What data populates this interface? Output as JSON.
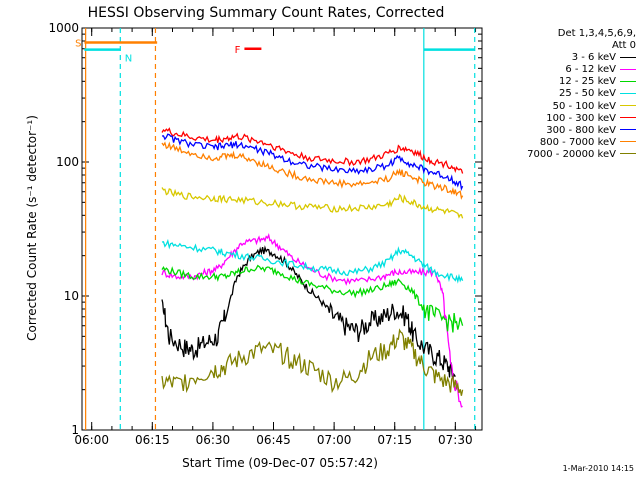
{
  "chart_data": {
    "type": "line",
    "title": "HESSI Observing Summary Count Rates, Corrected",
    "xlabel": "Start Time (09-Dec-07 05:57:42)",
    "ylabel": "Corrected Count Rate (s⁻¹ detector⁻¹)",
    "ylog": true,
    "ylim": [
      1,
      1000
    ],
    "yticks": [
      {
        "v": 1,
        "label": "1"
      },
      {
        "v": 10,
        "label": "10"
      },
      {
        "v": 100,
        "label": "100"
      },
      {
        "v": 1000,
        "label": "1000"
      }
    ],
    "xlim": [
      5.96,
      7.61
    ],
    "xticks": [
      {
        "v": 6.0,
        "label": "06:00"
      },
      {
        "v": 6.25,
        "label": "06:15"
      },
      {
        "v": 6.5,
        "label": "06:30"
      },
      {
        "v": 6.75,
        "label": "06:45"
      },
      {
        "v": 7.0,
        "label": "07:00"
      },
      {
        "v": 7.25,
        "label": "07:15"
      },
      {
        "v": 7.5,
        "label": "07:30"
      }
    ],
    "legend_header": [
      "Det 1,3,4,5,6,9,",
      "Att 0"
    ],
    "series": [
      {
        "name": "3 - 6 keV",
        "color": "#000000",
        "points": [
          [
            6.29,
            9
          ],
          [
            6.32,
            5
          ],
          [
            6.38,
            4.2
          ],
          [
            6.42,
            4
          ],
          [
            6.47,
            4.5
          ],
          [
            6.52,
            5
          ],
          [
            6.55,
            7
          ],
          [
            6.6,
            14
          ],
          [
            6.65,
            19
          ],
          [
            6.7,
            22
          ],
          [
            6.75,
            21
          ],
          [
            6.8,
            18
          ],
          [
            6.85,
            14
          ],
          [
            6.9,
            11
          ],
          [
            6.95,
            9
          ],
          [
            7.0,
            7
          ],
          [
            7.05,
            6
          ],
          [
            7.1,
            5.5
          ],
          [
            7.15,
            6.5
          ],
          [
            7.2,
            7
          ],
          [
            7.25,
            8
          ],
          [
            7.3,
            7
          ],
          [
            7.33,
            5
          ],
          [
            7.38,
            4
          ],
          [
            7.43,
            3.5
          ],
          [
            7.47,
            3
          ],
          [
            7.5,
            2.5
          ]
        ]
      },
      {
        "name": "6 - 12 keV",
        "color": "#ff00ff",
        "points": [
          [
            6.29,
            15
          ],
          [
            6.35,
            14
          ],
          [
            6.42,
            14
          ],
          [
            6.47,
            15
          ],
          [
            6.52,
            16
          ],
          [
            6.57,
            20
          ],
          [
            6.62,
            25
          ],
          [
            6.68,
            26
          ],
          [
            6.73,
            27
          ],
          [
            6.78,
            23
          ],
          [
            6.83,
            19
          ],
          [
            6.9,
            16
          ],
          [
            6.97,
            14
          ],
          [
            7.05,
            13
          ],
          [
            7.12,
            13
          ],
          [
            7.2,
            14
          ],
          [
            7.25,
            15
          ],
          [
            7.3,
            15
          ],
          [
            7.36,
            15
          ],
          [
            7.42,
            15
          ],
          [
            7.45,
            10
          ],
          [
            7.48,
            3
          ],
          [
            7.53,
            1.5
          ]
        ]
      },
      {
        "name": "12 - 25 keV",
        "color": "#00d800",
        "points": [
          [
            6.29,
            16
          ],
          [
            6.35,
            15
          ],
          [
            6.42,
            14
          ],
          [
            6.5,
            14
          ],
          [
            6.55,
            14
          ],
          [
            6.6,
            15
          ],
          [
            6.65,
            16
          ],
          [
            6.72,
            16
          ],
          [
            6.78,
            15
          ],
          [
            6.85,
            13
          ],
          [
            6.92,
            12
          ],
          [
            7.0,
            11
          ],
          [
            7.08,
            10.5
          ],
          [
            7.15,
            11
          ],
          [
            7.22,
            12
          ],
          [
            7.27,
            13
          ],
          [
            7.32,
            11
          ],
          [
            7.37,
            8
          ],
          [
            7.42,
            7
          ],
          [
            7.48,
            6.5
          ],
          [
            7.53,
            6
          ]
        ]
      },
      {
        "name": "25 - 50 keV",
        "color": "#00e0e0",
        "points": [
          [
            6.29,
            25
          ],
          [
            6.35,
            24
          ],
          [
            6.42,
            23
          ],
          [
            6.5,
            22
          ],
          [
            6.55,
            21
          ],
          [
            6.62,
            20
          ],
          [
            6.7,
            19
          ],
          [
            6.78,
            18
          ],
          [
            6.85,
            17
          ],
          [
            6.93,
            16
          ],
          [
            7.0,
            15.5
          ],
          [
            7.08,
            15
          ],
          [
            7.15,
            16
          ],
          [
            7.22,
            18
          ],
          [
            7.27,
            22
          ],
          [
            7.32,
            20
          ],
          [
            7.37,
            17
          ],
          [
            7.42,
            15
          ],
          [
            7.48,
            14
          ],
          [
            7.53,
            13
          ]
        ]
      },
      {
        "name": "50 - 100 keV",
        "color": "#d8c800",
        "points": [
          [
            6.29,
            62
          ],
          [
            6.35,
            57
          ],
          [
            6.42,
            55
          ],
          [
            6.5,
            54
          ],
          [
            6.55,
            53
          ],
          [
            6.62,
            52
          ],
          [
            6.7,
            50
          ],
          [
            6.78,
            49
          ],
          [
            6.85,
            47
          ],
          [
            6.93,
            46
          ],
          [
            7.0,
            45
          ],
          [
            7.08,
            45
          ],
          [
            7.15,
            46
          ],
          [
            7.22,
            48
          ],
          [
            7.27,
            54
          ],
          [
            7.32,
            50
          ],
          [
            7.37,
            46
          ],
          [
            7.42,
            44
          ],
          [
            7.48,
            42
          ],
          [
            7.53,
            38
          ]
        ]
      },
      {
        "name": "100 - 300 keV",
        "color": "#ff0000",
        "points": [
          [
            6.29,
            175
          ],
          [
            6.35,
            162
          ],
          [
            6.42,
            152
          ],
          [
            6.5,
            145
          ],
          [
            6.55,
            150
          ],
          [
            6.6,
            155
          ],
          [
            6.66,
            148
          ],
          [
            6.72,
            138
          ],
          [
            6.78,
            125
          ],
          [
            6.85,
            112
          ],
          [
            6.93,
            105
          ],
          [
            7.0,
            102
          ],
          [
            7.08,
            100
          ],
          [
            7.15,
            104
          ],
          [
            7.22,
            115
          ],
          [
            7.27,
            128
          ],
          [
            7.32,
            122
          ],
          [
            7.37,
            108
          ],
          [
            7.42,
            100
          ],
          [
            7.48,
            95
          ],
          [
            7.53,
            82
          ]
        ]
      },
      {
        "name": "300 - 800 keV",
        "color": "#0000ff",
        "points": [
          [
            6.29,
            160
          ],
          [
            6.35,
            145
          ],
          [
            6.42,
            135
          ],
          [
            6.5,
            128
          ],
          [
            6.55,
            132
          ],
          [
            6.6,
            136
          ],
          [
            6.66,
            128
          ],
          [
            6.72,
            118
          ],
          [
            6.78,
            108
          ],
          [
            6.85,
            98
          ],
          [
            6.93,
            92
          ],
          [
            7.0,
            88
          ],
          [
            7.08,
            86
          ],
          [
            7.15,
            88
          ],
          [
            7.22,
            95
          ],
          [
            7.27,
            108
          ],
          [
            7.32,
            96
          ],
          [
            7.37,
            88
          ],
          [
            7.42,
            82
          ],
          [
            7.48,
            76
          ],
          [
            7.53,
            66
          ]
        ]
      },
      {
        "name": "800 - 7000 keV",
        "color": "#ff8000",
        "points": [
          [
            6.29,
            138
          ],
          [
            6.35,
            125
          ],
          [
            6.42,
            116
          ],
          [
            6.5,
            108
          ],
          [
            6.55,
            110
          ],
          [
            6.6,
            112
          ],
          [
            6.66,
            104
          ],
          [
            6.72,
            94
          ],
          [
            6.78,
            86
          ],
          [
            6.85,
            78
          ],
          [
            6.93,
            73
          ],
          [
            7.0,
            70
          ],
          [
            7.08,
            68
          ],
          [
            7.15,
            70
          ],
          [
            7.22,
            75
          ],
          [
            7.27,
            85
          ],
          [
            7.32,
            78
          ],
          [
            7.37,
            70
          ],
          [
            7.42,
            66
          ],
          [
            7.48,
            62
          ],
          [
            7.53,
            56
          ]
        ]
      },
      {
        "name": "7000 - 20000 keV",
        "color": "#808000",
        "points": [
          [
            6.29,
            2.3
          ],
          [
            6.35,
            2.2
          ],
          [
            6.42,
            2.5
          ],
          [
            6.5,
            2.8
          ],
          [
            6.55,
            3
          ],
          [
            6.62,
            3.5
          ],
          [
            6.7,
            4
          ],
          [
            6.78,
            3.8
          ],
          [
            6.85,
            3.2
          ],
          [
            6.92,
            2.8
          ],
          [
            7.0,
            2.3
          ],
          [
            7.08,
            2.5
          ],
          [
            7.15,
            3.5
          ],
          [
            7.22,
            4
          ],
          [
            7.27,
            5
          ],
          [
            7.32,
            4
          ],
          [
            7.37,
            3
          ],
          [
            7.42,
            2.5
          ],
          [
            7.48,
            2.2
          ],
          [
            7.53,
            2
          ]
        ]
      }
    ],
    "annotations": [
      {
        "label": "S",
        "color": "#ff8000",
        "x0": 5.97,
        "x1": 6.27,
        "y": 780
      },
      {
        "label": "N",
        "color": "#00e0e0",
        "x0": 5.97,
        "x1": 6.12,
        "y": 690
      },
      {
        "label": "N",
        "color": "#00e0e0",
        "x0": 7.37,
        "x1": 7.58,
        "y": 690
      },
      {
        "label": "F",
        "color": "#ff0000",
        "x0": 6.63,
        "x1": 6.7,
        "y": 700
      }
    ],
    "vlines": [
      {
        "x": 5.975,
        "color": "#ff8000",
        "dash": false
      },
      {
        "x": 6.118,
        "color": "#00e0e0",
        "dash": true
      },
      {
        "x": 6.263,
        "color": "#ff8000",
        "dash": true
      },
      {
        "x": 7.37,
        "color": "#00e0e0",
        "dash": false
      },
      {
        "x": 7.58,
        "color": "#00e0e0",
        "dash": true
      }
    ],
    "timestamp": "1-Mar-2010 14:15"
  }
}
